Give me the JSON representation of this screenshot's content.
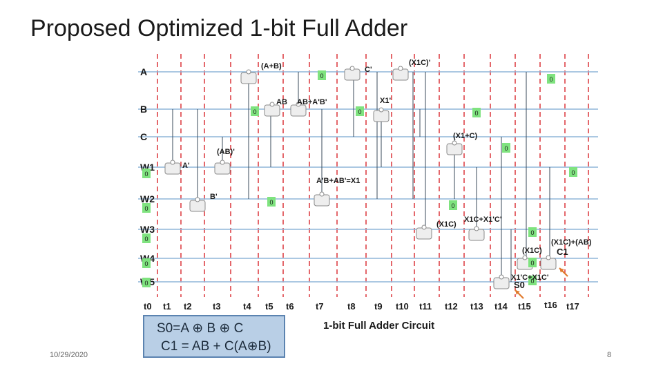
{
  "slide": {
    "title": "Proposed Optimized 1-bit Full Adder",
    "date": "10/29/2020",
    "page_number": "8"
  },
  "circuit": {
    "caption": "1-bit Full Adder Circuit",
    "rows": [
      "A",
      "B",
      "C",
      "W1",
      "W2",
      "W3",
      "W4",
      "W5"
    ],
    "time_steps": [
      "t0",
      "t1",
      "t2",
      "t3",
      "t4",
      "t5",
      "t6",
      "t7",
      "t8",
      "t9",
      "t10",
      "t11",
      "t12",
      "t13",
      "t14",
      "t15",
      "t16",
      "t17"
    ],
    "zero_value": "0",
    "gate_labels": [
      "(A+B)",
      "C'",
      "(X1C)'",
      "AB",
      "AB+A'B'",
      "X1'",
      "(X1+C)",
      "(AB)'",
      "A'",
      "A'B+AB'=X1",
      "B'",
      "(X1C)",
      "X1C+X1'C'",
      "(X1C)+(AB)",
      "(X1C)",
      "C1",
      "X1'C+X1C'",
      "S0"
    ],
    "equations": [
      "S0=A ⊕ B ⊕ C",
      "C1 = AB + C(A⊕B)"
    ],
    "colors": {
      "row_line": "#8fb6d9",
      "wire": "#3a4a5a",
      "time_marker": "#d9262c",
      "zero_box": "#7fe37f",
      "gate_fill": "#eeeeee",
      "arrow": "#e07a2c",
      "equation_box": "#b9cfe6"
    }
  }
}
